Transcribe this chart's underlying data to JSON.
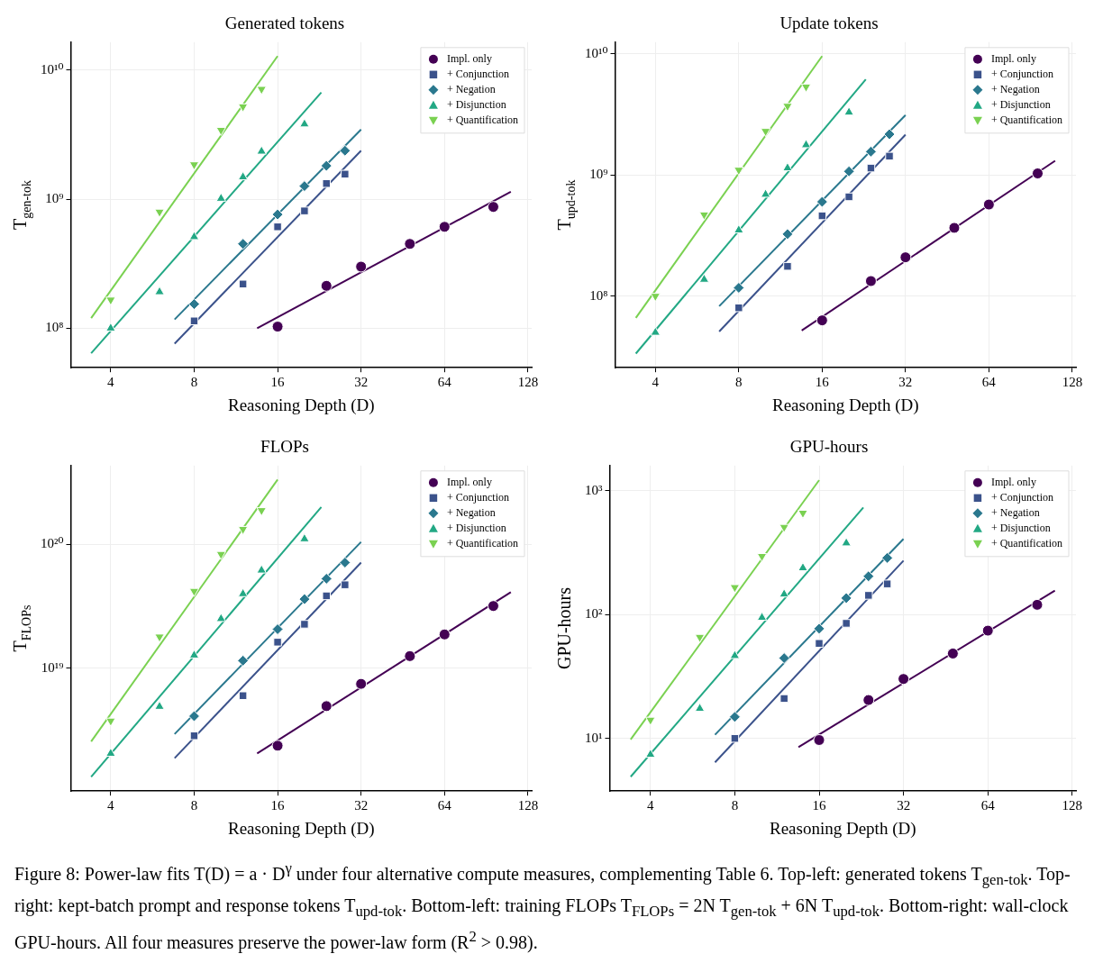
{
  "chart_data": [
    {
      "type": "scatter",
      "title": "Generated tokens",
      "xlabel": "Reasoning Depth (D)",
      "ylabel": "T$_{gen-tok}$",
      "log": "xy",
      "grid": true,
      "legend": "top right",
      "xlim": [
        2.87,
        132
      ],
      "xticks": [
        4,
        8,
        16,
        32,
        64,
        128
      ],
      "ylim": [
        49500000.0,
        16400000000.0
      ],
      "yticks": [
        {
          "value": 100000000.0,
          "label": "10⁸"
        },
        {
          "value": 1000000000.0,
          "label": "10⁹"
        },
        {
          "value": 10000000000.0,
          "label": "10¹⁰"
        }
      ],
      "series": [
        {
          "name": "Impl. only",
          "color": "#440154",
          "marker": "circle",
          "x": [
            16,
            24,
            32,
            48,
            64,
            96
          ],
          "values": [
            103000000.0,
            213000000.0,
            300000000.0,
            450000000.0,
            610000000.0,
            870000000.0
          ]
        },
        {
          "name": "+ Conjunction",
          "color": "#3b528b",
          "marker": "square",
          "x": [
            8,
            12,
            16,
            20,
            24,
            28
          ],
          "values": [
            114000000.0,
            220000000.0,
            610000000.0,
            810000000.0,
            1320000000.0,
            1560000000.0
          ]
        },
        {
          "name": "+ Negation",
          "color": "#2a788e",
          "marker": "diamond",
          "x": [
            8,
            12,
            16,
            20,
            24,
            28
          ],
          "values": [
            154000000.0,
            450000000.0,
            760000000.0,
            1260000000.0,
            1810000000.0,
            2370000000.0
          ]
        },
        {
          "name": "+ Disjunction",
          "color": "#22a884",
          "marker": "triangle",
          "x": [
            4,
            6,
            8,
            10,
            12,
            14,
            20
          ],
          "values": [
            100000000.0,
            191000000.0,
            510000000.0,
            1010000000.0,
            1480000000.0,
            2340000000.0,
            3800000000.0
          ]
        },
        {
          "name": "+ Quantification",
          "color": "#7ad151",
          "marker": "triangle-down",
          "x": [
            4,
            6,
            8,
            10,
            12,
            14
          ],
          "values": [
            166000000.0,
            796000000.0,
            1850000000.0,
            3420000000.0,
            5200000000.0,
            7100000000.0
          ]
        },
        {
          "type": "line",
          "color": "#440154",
          "x": [
            13.5,
            111
          ],
          "values": [
            100000000.0,
            1140000000.0
          ]
        },
        {
          "type": "line",
          "color": "#3b528b",
          "x": [
            6.8,
            32
          ],
          "values": [
            76000000.0,
            2370000000.0
          ]
        },
        {
          "type": "line",
          "color": "#2a788e",
          "x": [
            6.8,
            32
          ],
          "values": [
            117000000.0,
            3460000000.0
          ]
        },
        {
          "type": "line",
          "color": "#22a884",
          "x": [
            3.4,
            23
          ],
          "values": [
            64000000.0,
            6700000000.0
          ]
        },
        {
          "type": "line",
          "color": "#7ad151",
          "x": [
            3.4,
            16
          ],
          "values": [
            120000000.0,
            12800000000.0
          ]
        }
      ]
    },
    {
      "type": "scatter",
      "title": "Update tokens",
      "xlabel": "Reasoning Depth (D)",
      "ylabel": "T$_{upd-tok}$",
      "log": "xy",
      "grid": true,
      "legend": "top right",
      "xlim": [
        2.86,
        132
      ],
      "xticks": [
        4,
        8,
        16,
        32,
        64,
        128
      ],
      "ylim": [
        25600000.0,
        12500000000.0
      ],
      "yticks": [
        {
          "value": 100000000.0,
          "label": "10⁸"
        },
        {
          "value": 1000000000.0,
          "label": "10⁹"
        },
        {
          "value": 10000000000.0,
          "label": "10¹⁰"
        }
      ],
      "series": [
        {
          "name": "Impl. only",
          "color": "#440154",
          "marker": "circle",
          "x": [
            16,
            24,
            32,
            48,
            64,
            96
          ],
          "values": [
            63000000.0,
            133000000.0,
            209000000.0,
            366000000.0,
            570000000.0,
            1030000000.0
          ]
        },
        {
          "name": "+ Conjunction",
          "color": "#3b528b",
          "marker": "square",
          "x": [
            8,
            12,
            16,
            20,
            24,
            28
          ],
          "values": [
            80000000.0,
            176000000.0,
            460000000.0,
            660000000.0,
            1140000000.0,
            1430000000.0
          ]
        },
        {
          "name": "+ Negation",
          "color": "#2a788e",
          "marker": "diamond",
          "x": [
            8,
            12,
            16,
            20,
            24,
            28
          ],
          "values": [
            117000000.0,
            325000000.0,
            600000000.0,
            1070000000.0,
            1560000000.0,
            2170000000.0
          ]
        },
        {
          "name": "+ Disjunction",
          "color": "#22a884",
          "marker": "triangle",
          "x": [
            4,
            6,
            8,
            10,
            12,
            14,
            20
          ],
          "values": [
            50000000.0,
            137000000.0,
            350000000.0,
            690000000.0,
            1140000000.0,
            1770000000.0,
            3290000000.0
          ]
        },
        {
          "name": "+ Quantification",
          "color": "#7ad151",
          "marker": "triangle-down",
          "x": [
            4,
            6,
            8,
            10,
            12,
            14
          ],
          "values": [
            100000000.0,
            470000000.0,
            1100000000.0,
            2300000000.0,
            3710000000.0,
            5350000000.0
          ]
        },
        {
          "type": "line",
          "color": "#440154",
          "x": [
            13.5,
            111
          ],
          "values": [
            52000000.0,
            1310000000.0
          ]
        },
        {
          "type": "line",
          "color": "#3b528b",
          "x": [
            6.8,
            32
          ],
          "values": [
            51000000.0,
            2150000000.0
          ]
        },
        {
          "type": "line",
          "color": "#2a788e",
          "x": [
            6.8,
            32
          ],
          "values": [
            82500000.0,
            3120000000.0
          ]
        },
        {
          "type": "line",
          "color": "#22a884",
          "x": [
            3.4,
            23
          ],
          "values": [
            33500000.0,
            6150000000.0
          ]
        },
        {
          "type": "line",
          "color": "#7ad151",
          "x": [
            3.4,
            16
          ],
          "values": [
            66000000.0,
            9600000000.0
          ]
        }
      ]
    },
    {
      "type": "scatter",
      "title": "FLOPs",
      "xlabel": "Reasoning Depth (D)",
      "ylabel": "T$_{FLOPs}$",
      "log": "xy",
      "grid": true,
      "legend": "top right",
      "xlim": [
        2.87,
        132
      ],
      "xticks": [
        4,
        8,
        16,
        32,
        64,
        128
      ],
      "ylim": [
        1.02e+18,
        4.3e+20
      ],
      "yticks": [
        {
          "value": 1e+19,
          "label": "10¹⁹"
        },
        {
          "value": 1e+20,
          "label": "10²⁰"
        }
      ],
      "series": [
        {
          "name": "Impl. only",
          "color": "#440154",
          "marker": "circle",
          "x": [
            16,
            24,
            32,
            48,
            64,
            96
          ],
          "values": [
            2.37e+18,
            4.94e+18,
            7.47e+18,
            1.25e+19,
            1.87e+19,
            3.17e+19
          ]
        },
        {
          "name": "+ Conjunction",
          "color": "#3b528b",
          "marker": "square",
          "x": [
            8,
            12,
            16,
            20,
            24,
            28
          ],
          "values": [
            2.85e+18,
            6e+18,
            1.62e+19,
            2.26e+19,
            3.83e+19,
            4.7e+19
          ]
        },
        {
          "name": "+ Negation",
          "color": "#2a788e",
          "marker": "diamond",
          "x": [
            8,
            12,
            16,
            20,
            24,
            28
          ],
          "values": [
            4.1e+18,
            1.15e+19,
            2.06e+19,
            3.6e+19,
            5.26e+19,
            7.1e+19
          ]
        },
        {
          "name": "+ Disjunction",
          "color": "#22a884",
          "marker": "triangle",
          "x": [
            4,
            6,
            8,
            10,
            12,
            14,
            20
          ],
          "values": [
            2.05e+18,
            4.9e+18,
            1.27e+19,
            2.5e+19,
            3.97e+19,
            6.15e+19,
            1.1e+20
          ]
        },
        {
          "name": "+ Quantification",
          "color": "#7ad151",
          "marker": "triangle-down",
          "x": [
            4,
            6,
            8,
            10,
            12,
            14
          ],
          "values": [
            3.76e+18,
            1.79e+19,
            4.18e+19,
            8.3e+19,
            1.32e+20,
            1.87e+20
          ]
        },
        {
          "type": "line",
          "color": "#440154",
          "x": [
            13.5,
            111
          ],
          "values": [
            2.05e+18,
            4.1e+19
          ]
        },
        {
          "type": "line",
          "color": "#3b528b",
          "x": [
            6.8,
            32
          ],
          "values": [
            1.88e+18,
            7.1e+19
          ]
        },
        {
          "type": "line",
          "color": "#2a788e",
          "x": [
            6.8,
            32
          ],
          "values": [
            2.94e+18,
            1.04e+20
          ]
        },
        {
          "type": "line",
          "color": "#22a884",
          "x": [
            3.4,
            23
          ],
          "values": [
            1.33e+18,
            1.99e+20
          ]
        },
        {
          "type": "line",
          "color": "#7ad151",
          "x": [
            3.4,
            16
          ],
          "values": [
            2.56e+18,
            3.31e+20
          ]
        }
      ]
    },
    {
      "type": "scatter",
      "title": "GPU-hours",
      "xlabel": "Reasoning Depth (D)",
      "ylabel": "GPU-hours",
      "log": "xy",
      "grid": true,
      "legend": "top right",
      "xlim": [
        2.86,
        132
      ],
      "xticks": [
        4,
        8,
        16,
        32,
        64,
        128
      ],
      "ylim": [
        3.75,
        1600
      ],
      "yticks": [
        {
          "value": 10,
          "label": "10¹"
        },
        {
          "value": 100,
          "label": "10²"
        },
        {
          "value": 1000,
          "label": "10³"
        }
      ],
      "annotations": [
        "Figure 8: Power-law fits T(D) = a · D$^{γ}$ under four alternative compute measures, complementing Table 6. Top-left: generated tokens T$_{gen-tok}$. Top-right: kept-batch prompt and response tokens T$_{upd-tok}$. Bottom-left: training FLOPs T$_{FLOPs}$ = 2N T$_{gen-tok}$ + 6N T$_{upd-tok}$. Bottom-right: wall-clock GPU-hours. All four measures preserve the power-law form (R$^{2}$ > 0.98)."
      ],
      "series": [
        {
          "name": "Impl. only",
          "color": "#440154",
          "marker": "circle",
          "x": [
            16,
            24,
            32,
            48,
            64,
            96
          ],
          "values": [
            9.7,
            20.4,
            30.2,
            48.5,
            74.2,
            120
          ]
        },
        {
          "name": "+ Conjunction",
          "color": "#3b528b",
          "marker": "square",
          "x": [
            8,
            12,
            16,
            20,
            24,
            28
          ],
          "values": [
            10,
            21,
            58.5,
            85,
            143,
            177
          ]
        },
        {
          "name": "+ Negation",
          "color": "#2a788e",
          "marker": "diamond",
          "x": [
            8,
            12,
            16,
            20,
            24,
            28
          ],
          "values": [
            14.9,
            44.5,
            77,
            136,
            204,
            287
          ]
        },
        {
          "name": "+ Disjunction",
          "color": "#22a884",
          "marker": "triangle",
          "x": [
            4,
            6,
            8,
            10,
            12,
            14,
            20
          ],
          "values": [
            7.4,
            17.4,
            46.5,
            94.6,
            146,
            238,
            378
          ]
        },
        {
          "name": "+ Quantification",
          "color": "#7ad151",
          "marker": "triangle-down",
          "x": [
            4,
            6,
            8,
            10,
            12,
            14
          ],
          "values": [
            14.1,
            65.8,
            166,
            296,
            509,
            662
          ]
        },
        {
          "type": "line",
          "color": "#440154",
          "x": [
            13.5,
            111
          ],
          "values": [
            8.5,
            156
          ]
        },
        {
          "type": "line",
          "color": "#3b528b",
          "x": [
            6.8,
            32
          ],
          "values": [
            6.4,
            273
          ]
        },
        {
          "type": "line",
          "color": "#2a788e",
          "x": [
            6.8,
            32
          ],
          "values": [
            10.7,
            409
          ]
        },
        {
          "type": "line",
          "color": "#22a884",
          "x": [
            3.4,
            23
          ],
          "values": [
            4.9,
            733
          ]
        },
        {
          "type": "line",
          "color": "#7ad151",
          "x": [
            3.4,
            16
          ],
          "values": [
            9.8,
            1220
          ]
        }
      ]
    }
  ]
}
